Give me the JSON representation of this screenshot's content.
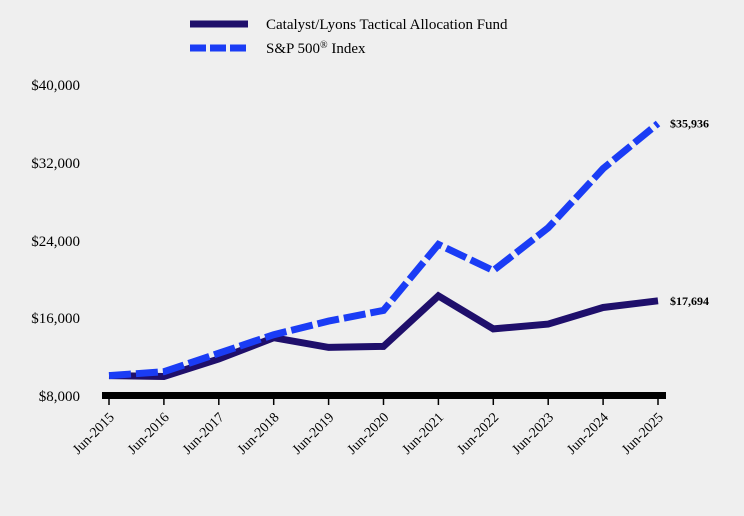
{
  "chart_data": {
    "type": "line",
    "title": "",
    "xlabel": "",
    "ylabel": "",
    "categories": [
      "Jun-2015",
      "Jun-2016",
      "Jun-2017",
      "Jun-2018",
      "Jun-2019",
      "Jun-2020",
      "Jun-2021",
      "Jun-2022",
      "Jun-2023",
      "Jun-2024",
      "Jun-2025"
    ],
    "ylim": [
      8000,
      40000
    ],
    "yticks": [
      8000,
      16000,
      24000,
      32000,
      40000
    ],
    "ytick_labels": [
      "$8,000",
      "$16,000",
      "$24,000",
      "$32,000",
      "$40,000"
    ],
    "legend_position": "top-center",
    "series": [
      {
        "name": "Catalyst/Lyons Tactical Allocation Fund",
        "color": "#1f0f6b",
        "style": "solid",
        "values": [
          10000,
          9900,
          11700,
          13900,
          12900,
          13000,
          18200,
          14800,
          15300,
          17000,
          17694
        ],
        "end_label": "$17,694"
      },
      {
        "name": "S&P 500® Index",
        "name_main": "S&P 500",
        "name_sup": "®",
        "name_suffix": " Index",
        "color": "#1a3cf5",
        "style": "dashed",
        "values": [
          10000,
          10400,
          12300,
          14200,
          15600,
          16700,
          23500,
          20800,
          25200,
          31300,
          35936
        ],
        "end_label": "$35,936"
      }
    ]
  }
}
